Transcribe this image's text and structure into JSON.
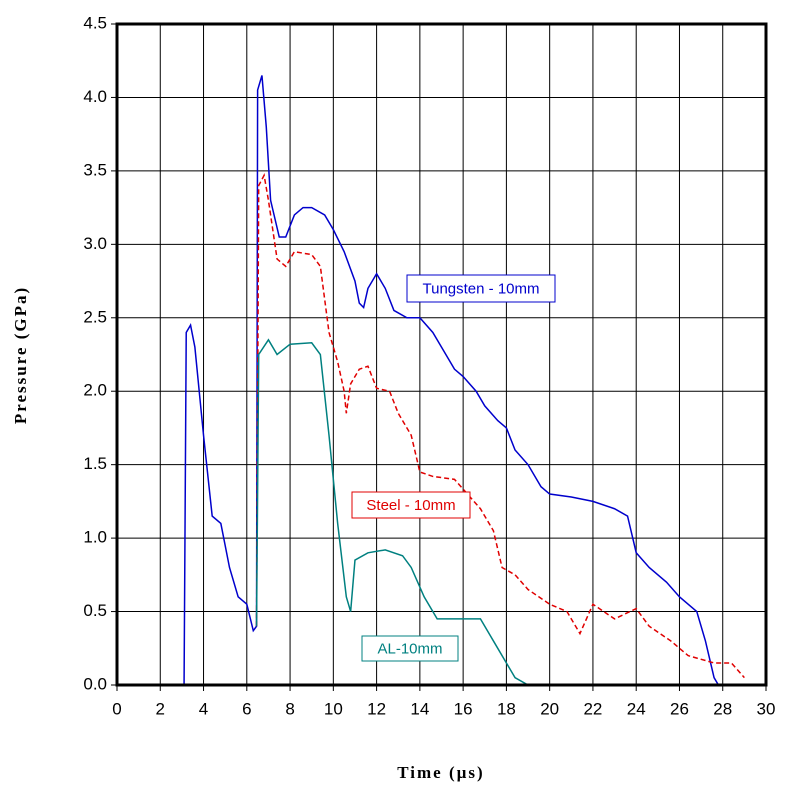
{
  "chart_data": {
    "type": "line",
    "x_label": "Time (µs)",
    "y_label": "Pressure (GPa)",
    "xlim": [
      0,
      30
    ],
    "ylim": [
      0,
      4.5
    ],
    "xticks": [
      0,
      2,
      4,
      6,
      8,
      10,
      12,
      14,
      16,
      18,
      20,
      22,
      24,
      26,
      28,
      30
    ],
    "yticks": [
      {
        "value": 0,
        "label": "0.0"
      },
      {
        "value": 0.5,
        "label": "0.5"
      },
      {
        "value": 1,
        "label": "1.0"
      },
      {
        "value": 1.5,
        "label": "1.5"
      },
      {
        "value": 2,
        "label": "2.0"
      },
      {
        "value": 2.5,
        "label": "2.5"
      },
      {
        "value": 3,
        "label": "3.0"
      },
      {
        "value": 3.5,
        "label": "3.5"
      },
      {
        "value": 4,
        "label": "4.0"
      },
      {
        "value": 4.5,
        "label": "4.5"
      }
    ],
    "grid": true,
    "series": [
      {
        "name": "Tungsten - 10mm",
        "color": "#0000cc",
        "dash": false,
        "x": [
          0,
          3.1,
          3.2,
          3.4,
          3.6,
          4,
          4.4,
          4.8,
          5.2,
          5.6,
          6,
          6.3,
          6.45,
          6.5,
          6.7,
          6.9,
          7.1,
          7.5,
          7.8,
          8.2,
          8.6,
          9,
          9.6,
          10,
          10.5,
          11,
          11.2,
          11.4,
          11.6,
          12,
          12.4,
          12.8,
          13.4,
          14,
          14.6,
          15,
          15.6,
          16,
          16.6,
          17,
          17.6,
          18,
          18.4,
          19,
          19.6,
          20,
          21,
          22,
          23,
          23.6,
          24,
          24.6,
          25.4,
          26,
          26.8,
          27.2,
          27.6,
          27.8
        ],
        "values": [
          0,
          0,
          2.4,
          2.45,
          2.3,
          1.7,
          1.15,
          1.1,
          0.8,
          0.6,
          0.55,
          0.37,
          0.4,
          4.05,
          4.15,
          3.8,
          3.3,
          3.05,
          3.05,
          3.2,
          3.25,
          3.25,
          3.2,
          3.1,
          2.95,
          2.75,
          2.6,
          2.57,
          2.7,
          2.8,
          2.7,
          2.55,
          2.5,
          2.5,
          2.4,
          2.3,
          2.15,
          2.1,
          2,
          1.9,
          1.8,
          1.75,
          1.6,
          1.5,
          1.35,
          1.3,
          1.28,
          1.25,
          1.2,
          1.15,
          0.9,
          0.8,
          0.7,
          0.6,
          0.5,
          0.3,
          0.05,
          0
        ]
      },
      {
        "name": "Steel - 10mm",
        "color": "#e00000",
        "dash": true,
        "x": [
          6.45,
          6.55,
          6.8,
          7,
          7.4,
          7.8,
          8.2,
          9,
          9.4,
          9.8,
          10.2,
          10.5,
          10.6,
          10.8,
          11.2,
          11.6,
          12,
          12.6,
          13,
          13.6,
          14,
          14.6,
          15.6,
          16.2,
          16.8,
          17.4,
          17.8,
          18.4,
          19,
          20,
          20.8,
          21.4,
          22,
          23,
          24,
          24.6,
          25.6,
          26.4,
          27.6,
          28.4,
          29
        ],
        "values": [
          0.4,
          3.4,
          3.47,
          3.3,
          2.9,
          2.85,
          2.95,
          2.93,
          2.85,
          2.4,
          2.2,
          2,
          1.85,
          2.05,
          2.15,
          2.17,
          2.02,
          2,
          1.85,
          1.7,
          1.45,
          1.42,
          1.4,
          1.3,
          1.2,
          1.05,
          0.8,
          0.75,
          0.65,
          0.55,
          0.5,
          0.35,
          0.55,
          0.45,
          0.52,
          0.4,
          0.3,
          0.2,
          0.15,
          0.15,
          0.05
        ]
      },
      {
        "name": "AL-10mm",
        "color": "#008080",
        "dash": false,
        "x": [
          6.45,
          6.55,
          7,
          7.4,
          8,
          9,
          9.4,
          9.8,
          10.2,
          10.6,
          10.8,
          11,
          11.6,
          12.4,
          13.2,
          13.6,
          14.2,
          14.8,
          16,
          16.8,
          17.4,
          18,
          18.4,
          19,
          19.8
        ],
        "values": [
          0.4,
          2.25,
          2.35,
          2.25,
          2.32,
          2.33,
          2.25,
          1.7,
          1.1,
          0.6,
          0.5,
          0.85,
          0.9,
          0.92,
          0.88,
          0.8,
          0.6,
          0.45,
          0.45,
          0.45,
          0.3,
          0.15,
          0.05,
          0,
          0
        ]
      }
    ]
  }
}
